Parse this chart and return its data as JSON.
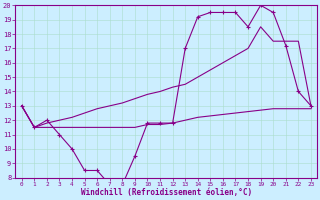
{
  "bg_color": "#cceeff",
  "line_color": "#880088",
  "xlabel": "Windchill (Refroidissement éolien,°C)",
  "xlim": [
    -0.5,
    23.5
  ],
  "ylim": [
    8,
    20
  ],
  "yticks": [
    8,
    9,
    10,
    11,
    12,
    13,
    14,
    15,
    16,
    17,
    18,
    19,
    20
  ],
  "xticks": [
    0,
    1,
    2,
    3,
    4,
    5,
    6,
    7,
    8,
    9,
    10,
    11,
    12,
    13,
    14,
    15,
    16,
    17,
    18,
    19,
    20,
    21,
    22,
    23
  ],
  "line1_x": [
    0,
    1,
    2,
    3,
    4,
    5,
    6,
    7,
    8,
    9,
    10,
    11,
    12,
    13,
    14,
    15,
    16,
    17,
    18,
    19,
    20,
    21,
    22,
    23
  ],
  "line1_y": [
    13.0,
    11.5,
    12.0,
    11.0,
    10.0,
    8.5,
    8.5,
    7.5,
    7.5,
    9.5,
    11.8,
    11.8,
    11.8,
    17.0,
    19.2,
    19.5,
    19.5,
    19.5,
    18.5,
    20.0,
    19.5,
    17.2,
    14.0,
    13.0
  ],
  "line2_x": [
    0,
    1,
    2,
    3,
    4,
    5,
    6,
    7,
    8,
    9,
    10,
    11,
    12,
    13,
    14,
    15,
    16,
    17,
    18,
    19,
    20,
    21,
    22,
    23
  ],
  "line2_y": [
    13.0,
    11.5,
    11.5,
    11.5,
    11.5,
    11.5,
    11.5,
    11.5,
    11.5,
    11.5,
    11.7,
    11.7,
    11.8,
    12.0,
    12.2,
    12.3,
    12.4,
    12.5,
    12.6,
    12.7,
    12.8,
    12.8,
    12.8,
    12.8
  ],
  "line3_x": [
    0,
    1,
    2,
    3,
    4,
    5,
    6,
    7,
    8,
    9,
    10,
    11,
    12,
    13,
    14,
    15,
    16,
    17,
    18,
    19,
    20,
    21,
    22,
    23
  ],
  "line3_y": [
    13.0,
    11.5,
    11.8,
    12.0,
    12.2,
    12.5,
    12.8,
    13.0,
    13.2,
    13.5,
    13.8,
    14.0,
    14.3,
    14.5,
    15.0,
    15.5,
    16.0,
    16.5,
    17.0,
    18.5,
    17.5,
    17.5,
    17.5,
    13.0
  ]
}
